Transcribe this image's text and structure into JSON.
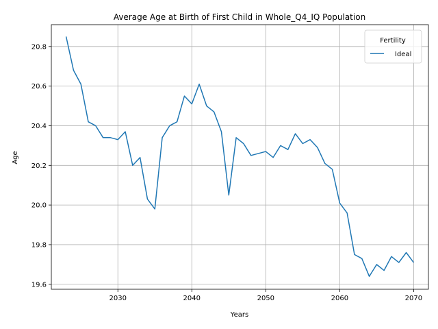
{
  "chart_data": {
    "type": "line",
    "title": "Average Age at Birth of First Child in Whole_Q4_IQ Population",
    "xlabel": "Years",
    "ylabel": "Age",
    "xlim": [
      2021,
      2072
    ],
    "ylim": [
      19.575,
      20.91
    ],
    "xticks": [
      2030,
      2040,
      2050,
      2060,
      2070
    ],
    "yticks": [
      19.6,
      19.8,
      20.0,
      20.2,
      20.4,
      20.6,
      20.8
    ],
    "grid": true,
    "legend": {
      "title": "Fertility",
      "position": "top-right"
    },
    "series": [
      {
        "name": "Ideal",
        "color": "#1f77b4",
        "x": [
          2023,
          2024,
          2025,
          2026,
          2027,
          2028,
          2029,
          2030,
          2031,
          2032,
          2033,
          2034,
          2035,
          2036,
          2037,
          2038,
          2039,
          2040,
          2041,
          2042,
          2043,
          2044,
          2045,
          2046,
          2047,
          2048,
          2049,
          2050,
          2051,
          2052,
          2053,
          2054,
          2055,
          2056,
          2057,
          2058,
          2059,
          2060,
          2061,
          2062,
          2063,
          2064,
          2065,
          2066,
          2067,
          2068,
          2069,
          2070
        ],
        "values": [
          20.85,
          20.68,
          20.61,
          20.42,
          20.4,
          20.34,
          20.34,
          20.33,
          20.37,
          20.2,
          20.24,
          20.03,
          19.98,
          20.34,
          20.4,
          20.42,
          20.55,
          20.51,
          20.61,
          20.5,
          20.47,
          20.37,
          20.05,
          20.34,
          20.31,
          20.25,
          20.26,
          20.27,
          20.24,
          20.3,
          20.28,
          20.36,
          20.31,
          20.33,
          20.29,
          20.21,
          20.18,
          20.01,
          19.96,
          19.75,
          19.73,
          19.64,
          19.7,
          19.67,
          19.74,
          19.71,
          19.76,
          19.71
        ]
      }
    ]
  }
}
